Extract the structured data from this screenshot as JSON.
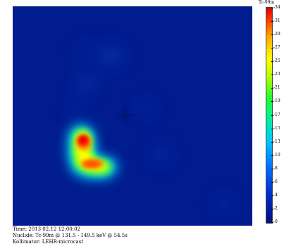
{
  "scan": {
    "colorbar_title": "Tc-99m",
    "ticks": [
      "34",
      "31",
      "29",
      "27",
      "25",
      "23",
      "21",
      "19",
      "17",
      "15",
      "13",
      "10",
      "8",
      "6",
      "4",
      "2",
      "0"
    ],
    "colors": {
      "background": "#001c8f",
      "hot": "#e00000",
      "cold": "#00107a"
    }
  },
  "info": {
    "time": "Time: 2013 02.12 12:00:02",
    "nuclide": "Nuclide: Tc-99m @ 131.5 - 149.5 keV @ 54.5s",
    "collimator": "Kollimator: LEHR-microcast"
  }
}
